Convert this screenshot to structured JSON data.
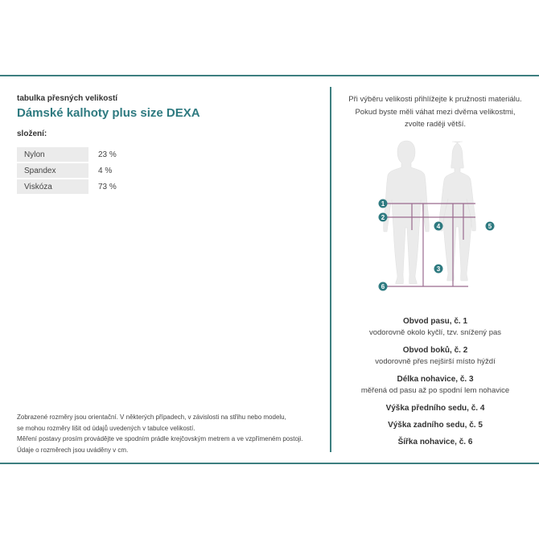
{
  "header": {
    "subtitle": "tabulka přesných velikostí",
    "title": "Dámské kalhoty plus size DEXA"
  },
  "composition": {
    "label": "složení:",
    "rows": [
      {
        "material": "Nylon",
        "value": "23 %"
      },
      {
        "material": "Spandex",
        "value": "4 %"
      },
      {
        "material": "Viskóza",
        "value": "73 %"
      }
    ]
  },
  "notes": [
    "Zobrazené rozměry jsou orientační. V některých případech, v závislosti na střihu nebo modelu,",
    "se mohou rozměry lišit od údajů uvedených v tabulce velikostí.",
    "Měření postavy prosím provádějte ve spodním prádle krejčovským metrem a ve vzpřímeném postoji.",
    "Údaje o rozměrech jsou uváděny v cm."
  ],
  "hint": [
    "Při výběru velikosti přihlížejte k pružnosti materiálu.",
    "Pokud byste měli váhat mezi dvěma velikostmi,",
    "zvolte raději větší."
  ],
  "figure": {
    "markers": [
      "1",
      "2",
      "3",
      "4",
      "5",
      "6"
    ]
  },
  "measurements": [
    {
      "title": "Obvod pasu, č. 1",
      "desc": "vodorovně okolo kyčlí, tzv. snížený pas"
    },
    {
      "title": "Obvod boků, č. 2",
      "desc": "vodorovně přes nejširší místo hýždí"
    },
    {
      "title": "Délka nohavice, č. 3",
      "desc": "měřená od pasu až po spodní lem nohavice"
    },
    {
      "title": "Výška předního sedu, č. 4",
      "desc": ""
    },
    {
      "title": "Výška zadního sedu, č. 5",
      "desc": ""
    },
    {
      "title": "Šířka nohavice, č. 6",
      "desc": ""
    }
  ],
  "colors": {
    "accent": "#3d7f80",
    "title": "#2e7a80",
    "measure_line": "#9a6a8e",
    "silhouette": "#ebebeb"
  }
}
